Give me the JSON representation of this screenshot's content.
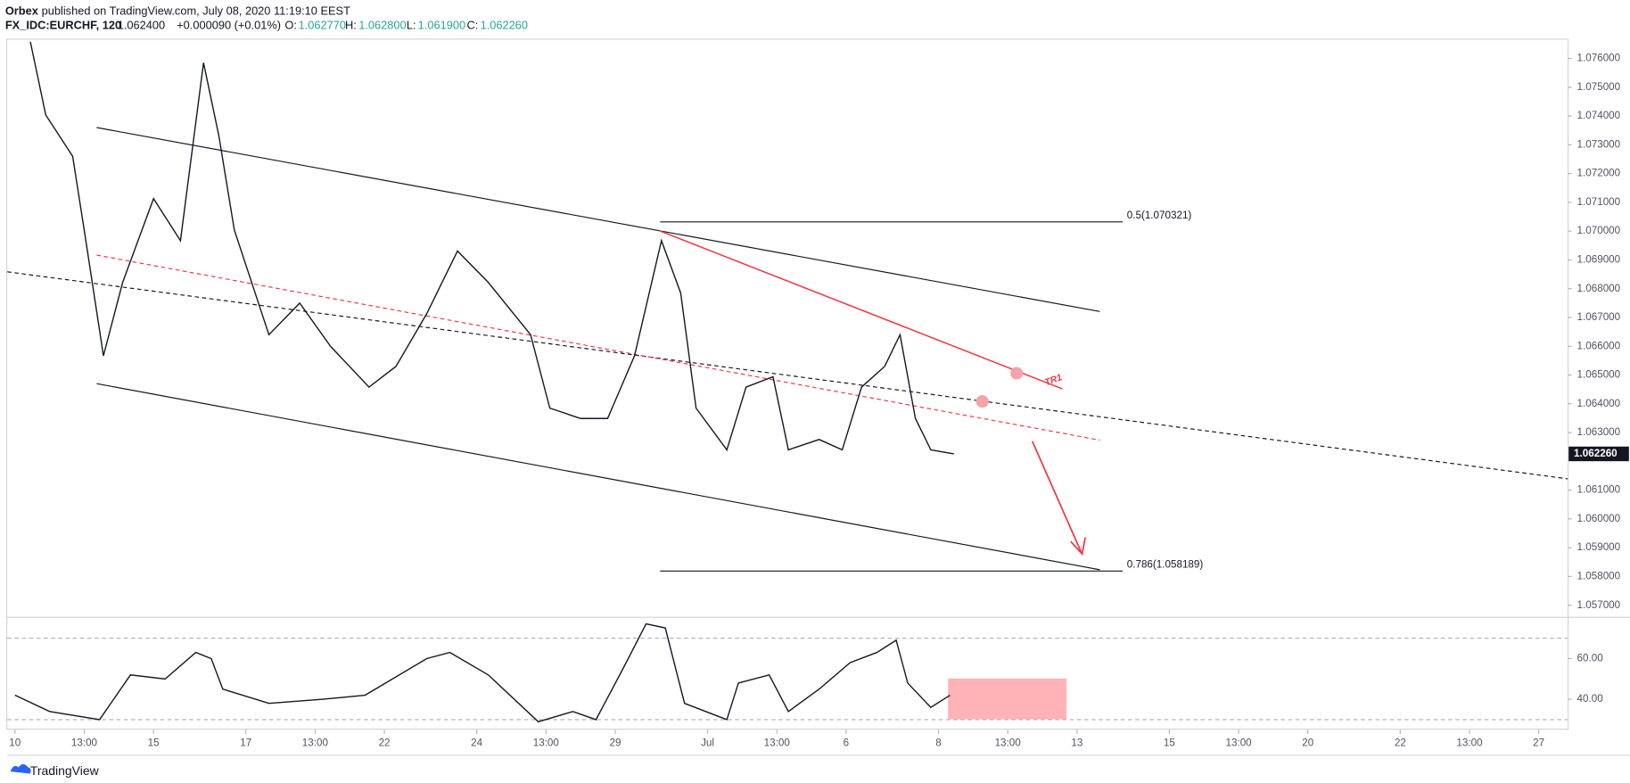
{
  "header": {
    "author": "Orbex",
    "published": "published on TradingView.com, July 08, 2020 11:19:10 EEST",
    "symbol": "FX_IDC:EURCHF, 120",
    "price": "1.062400",
    "change": "+0.000090 (+0.01%)",
    "o_label": "O:",
    "o": "1.062770",
    "h_label": "H:",
    "h": "1.062800",
    "l_label": "L:",
    "l": "1.061900",
    "c_label": "C:",
    "c": "1.062260"
  },
  "footer": {
    "brand": "TradingView"
  },
  "chart_data": [
    {
      "type": "line",
      "color": "#131722",
      "x": [
        4,
        8,
        15,
        18,
        23,
        28,
        36,
        43,
        49,
        53,
        57,
        66,
        74,
        82,
        92,
        99,
        107,
        115,
        123,
        134,
        139,
        147,
        154,
        161,
        168,
        173,
        177,
        185,
        190,
        197,
        201,
        209,
        215,
        220,
        226,
        230,
        234,
        238,
        244
      ],
      "values": [
        1.07658,
        1.07404,
        1.0726,
        1.07004,
        1.06567,
        1.06822,
        1.07113,
        1.06967,
        1.07585,
        1.0733,
        1.07004,
        1.0664,
        1.0675,
        1.066,
        1.06458,
        1.0653,
        1.06713,
        1.06931,
        1.06822,
        1.0664,
        1.06385,
        1.06349,
        1.06349,
        1.06567,
        1.06967,
        1.06785,
        1.06385,
        1.0624,
        1.06458,
        1.06494,
        1.0624,
        1.06276,
        1.0624,
        1.06458,
        1.0653,
        1.0664,
        1.06349,
        1.0624,
        1.06226
      ],
      "xlim": [
        -2,
        403.5
      ],
      "ylim": [
        1.0566,
        1.07665
      ],
      "xticks": [
        {
          "value": 0,
          "label": "10"
        },
        {
          "value": 18,
          "label": "13:00"
        },
        {
          "value": 36,
          "label": "15"
        },
        {
          "value": 60,
          "label": "17"
        },
        {
          "value": 78,
          "label": "13:00"
        },
        {
          "value": 96,
          "label": "22"
        },
        {
          "value": 120,
          "label": "24"
        },
        {
          "value": 138,
          "label": "13:00"
        },
        {
          "value": 156,
          "label": "29"
        },
        {
          "value": 180,
          "label": "Jul"
        },
        {
          "value": 198,
          "label": "13:00"
        },
        {
          "value": 216,
          "label": "6"
        },
        {
          "value": 240,
          "label": "8"
        },
        {
          "value": 258,
          "label": "13:00"
        },
        {
          "value": 276,
          "label": "13"
        },
        {
          "value": 300,
          "label": "15"
        },
        {
          "value": 318,
          "label": "13:00"
        },
        {
          "value": 336,
          "label": "20"
        },
        {
          "value": 360,
          "label": "22"
        },
        {
          "value": 378,
          "label": "13:00"
        },
        {
          "value": 396,
          "label": "27"
        }
      ],
      "yticks": [
        {
          "value": 1.057,
          "label": "1.057000"
        },
        {
          "value": 1.058,
          "label": "1.058000"
        },
        {
          "value": 1.059,
          "label": "1.059000"
        },
        {
          "value": 1.06,
          "label": "1.060000"
        },
        {
          "value": 1.061,
          "label": "1.061000"
        },
        {
          "value": 1.063,
          "label": "1.063000"
        },
        {
          "value": 1.064,
          "label": "1.064000"
        },
        {
          "value": 1.065,
          "label": "1.065000"
        },
        {
          "value": 1.066,
          "label": "1.066000"
        },
        {
          "value": 1.067,
          "label": "1.067000"
        },
        {
          "value": 1.068,
          "label": "1.068000"
        },
        {
          "value": 1.069,
          "label": "1.069000"
        },
        {
          "value": 1.07,
          "label": "1.070000"
        },
        {
          "value": 1.071,
          "label": "1.071000"
        },
        {
          "value": 1.072,
          "label": "1.072000"
        },
        {
          "value": 1.073,
          "label": "1.073000"
        },
        {
          "value": 1.074,
          "label": "1.074000"
        },
        {
          "value": 1.075,
          "label": "1.075000"
        },
        {
          "value": 1.076,
          "label": "1.076000"
        }
      ],
      "last_price": {
        "value": 1.06226,
        "label": "1.062260"
      },
      "fib_levels": [
        {
          "value": 1.070321,
          "label": "0.5(1.070321)"
        },
        {
          "value": 1.058189,
          "label": "0.786(1.058189)"
        }
      ],
      "annotation": "TR1"
    },
    {
      "type": "line",
      "color": "#131722",
      "x": [
        0,
        9,
        22,
        30,
        39,
        47,
        51,
        54,
        66,
        80,
        91,
        107,
        113,
        123,
        136,
        145,
        151,
        158,
        164,
        169,
        174,
        185,
        188,
        196,
        201,
        209,
        217,
        224,
        229,
        232,
        238,
        243
      ],
      "values": [
        42,
        34,
        30,
        52,
        50,
        63,
        60,
        45,
        38,
        40,
        42,
        60,
        63,
        52,
        29,
        34,
        30,
        55,
        77,
        75,
        38,
        30,
        48,
        52,
        34,
        45,
        58,
        63,
        69,
        48,
        36,
        42
      ],
      "ylim": [
        25.6,
        80
      ],
      "yticks": [
        {
          "value": 40,
          "label": "40.00"
        },
        {
          "value": 60,
          "label": "60.00"
        }
      ],
      "bands": [
        30,
        70
      ]
    }
  ]
}
